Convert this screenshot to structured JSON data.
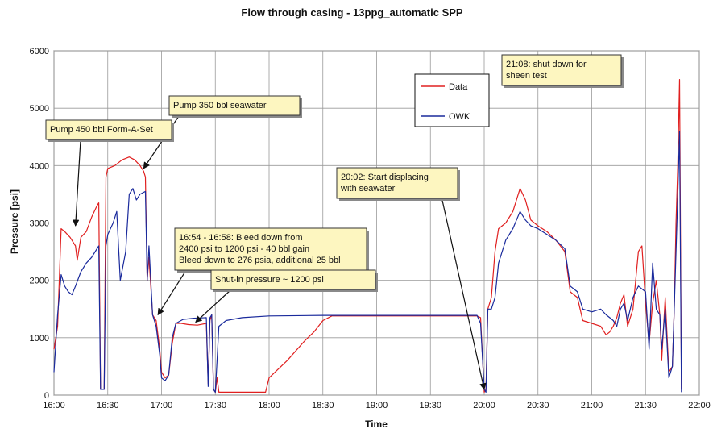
{
  "chart_data": {
    "type": "line",
    "title": "Flow through casing - 13ppg_automatic SPP",
    "xlabel": "Time",
    "ylabel": "Pressure [psi]",
    "xlim": [
      "16:00",
      "22:00"
    ],
    "ylim": [
      0,
      6000
    ],
    "grid": true,
    "legend_position": "top-middle",
    "x_ticks": [
      "16:00",
      "16:30",
      "17:00",
      "17:30",
      "18:00",
      "18:30",
      "19:00",
      "19:30",
      "20:00",
      "20:30",
      "21:00",
      "21:30",
      "22:00"
    ],
    "y_ticks": [
      0,
      1000,
      2000,
      3000,
      4000,
      5000,
      6000
    ],
    "series": [
      {
        "name": "Data",
        "color": "#e02020",
        "points": [
          [
            "16:00",
            800
          ],
          [
            "16:02",
            1200
          ],
          [
            "16:04",
            2900
          ],
          [
            "16:06",
            2850
          ],
          [
            "16:09",
            2750
          ],
          [
            "16:12",
            2600
          ],
          [
            "16:13",
            2350
          ],
          [
            "16:15",
            2750
          ],
          [
            "16:18",
            2850
          ],
          [
            "16:21",
            3100
          ],
          [
            "16:24",
            3300
          ],
          [
            "16:25",
            3350
          ],
          [
            "16:26",
            100
          ],
          [
            "16:27",
            100
          ],
          [
            "16:28",
            100
          ],
          [
            "16:29",
            3800
          ],
          [
            "16:30",
            3950
          ],
          [
            "16:34",
            4000
          ],
          [
            "16:38",
            4100
          ],
          [
            "16:42",
            4150
          ],
          [
            "16:45",
            4100
          ],
          [
            "16:48",
            4000
          ],
          [
            "16:50",
            3900
          ],
          [
            "16:51",
            3800
          ],
          [
            "16:52",
            2000
          ],
          [
            "16:53",
            2400
          ],
          [
            "16:55",
            1400
          ],
          [
            "16:57",
            1300
          ],
          [
            "16:59",
            800
          ],
          [
            "17:00",
            400
          ],
          [
            "17:02",
            300
          ],
          [
            "17:04",
            350
          ],
          [
            "17:06",
            900
          ],
          [
            "17:08",
            1250
          ],
          [
            "17:11",
            1250
          ],
          [
            "17:15",
            1230
          ],
          [
            "17:20",
            1220
          ],
          [
            "17:25",
            1250
          ],
          [
            "17:26",
            200
          ],
          [
            "17:27",
            1300
          ],
          [
            "17:28",
            1400
          ],
          [
            "17:29",
            100
          ],
          [
            "17:30",
            50
          ],
          [
            "17:31",
            300
          ],
          [
            "17:32",
            50
          ],
          [
            "17:40",
            50
          ],
          [
            "17:50",
            50
          ],
          [
            "17:55",
            50
          ],
          [
            "17:58",
            50
          ],
          [
            "18:00",
            300
          ],
          [
            "18:10",
            600
          ],
          [
            "18:20",
            950
          ],
          [
            "18:25",
            1100
          ],
          [
            "18:30",
            1300
          ],
          [
            "18:35",
            1380
          ],
          [
            "19:00",
            1380
          ],
          [
            "19:30",
            1380
          ],
          [
            "19:45",
            1380
          ],
          [
            "19:56",
            1380
          ],
          [
            "19:58",
            1350
          ],
          [
            "20:00",
            50
          ],
          [
            "20:01",
            100
          ],
          [
            "20:02",
            1500
          ],
          [
            "20:04",
            1700
          ],
          [
            "20:06",
            2500
          ],
          [
            "20:08",
            2900
          ],
          [
            "20:12",
            3000
          ],
          [
            "20:16",
            3200
          ],
          [
            "20:20",
            3600
          ],
          [
            "20:23",
            3400
          ],
          [
            "20:26",
            3050
          ],
          [
            "20:30",
            2950
          ],
          [
            "20:35",
            2850
          ],
          [
            "20:40",
            2700
          ],
          [
            "20:45",
            2500
          ],
          [
            "20:48",
            1800
          ],
          [
            "20:52",
            1700
          ],
          [
            "20:55",
            1300
          ],
          [
            "21:00",
            1250
          ],
          [
            "21:05",
            1200
          ],
          [
            "21:08",
            1050
          ],
          [
            "21:10",
            1100
          ],
          [
            "21:12",
            1200
          ],
          [
            "21:14",
            1350
          ],
          [
            "21:16",
            1600
          ],
          [
            "21:18",
            1750
          ],
          [
            "21:20",
            1200
          ],
          [
            "21:23",
            1500
          ],
          [
            "21:26",
            2500
          ],
          [
            "21:28",
            2600
          ],
          [
            "21:30",
            1600
          ],
          [
            "21:32",
            900
          ],
          [
            "21:34",
            1600
          ],
          [
            "21:36",
            2000
          ],
          [
            "21:38",
            1400
          ],
          [
            "21:39",
            600
          ],
          [
            "21:41",
            1700
          ],
          [
            "21:43",
            400
          ],
          [
            "21:45",
            500
          ],
          [
            "21:46",
            1500
          ],
          [
            "21:47",
            3000
          ],
          [
            "21:48",
            4000
          ],
          [
            "21:49",
            5500
          ],
          [
            "21:50",
            100
          ]
        ]
      },
      {
        "name": "OWK",
        "color": "#1a2a9c",
        "points": [
          [
            "16:00",
            400
          ],
          [
            "16:02",
            1400
          ],
          [
            "16:04",
            2100
          ],
          [
            "16:06",
            1900
          ],
          [
            "16:08",
            1800
          ],
          [
            "16:10",
            1750
          ],
          [
            "16:12",
            1900
          ],
          [
            "16:15",
            2150
          ],
          [
            "16:18",
            2300
          ],
          [
            "16:21",
            2400
          ],
          [
            "16:24",
            2550
          ],
          [
            "16:25",
            2600
          ],
          [
            "16:26",
            100
          ],
          [
            "16:27",
            100
          ],
          [
            "16:28",
            100
          ],
          [
            "16:29",
            2600
          ],
          [
            "16:30",
            2800
          ],
          [
            "16:33",
            3000
          ],
          [
            "16:35",
            3200
          ],
          [
            "16:37",
            2000
          ],
          [
            "16:40",
            2500
          ],
          [
            "16:42",
            3500
          ],
          [
            "16:44",
            3600
          ],
          [
            "16:46",
            3400
          ],
          [
            "16:48",
            3500
          ],
          [
            "16:51",
            3550
          ],
          [
            "16:52",
            2000
          ],
          [
            "16:53",
            2600
          ],
          [
            "16:55",
            1400
          ],
          [
            "16:57",
            1200
          ],
          [
            "16:59",
            700
          ],
          [
            "17:00",
            300
          ],
          [
            "17:02",
            250
          ],
          [
            "17:04",
            350
          ],
          [
            "17:06",
            1000
          ],
          [
            "17:08",
            1250
          ],
          [
            "17:12",
            1320
          ],
          [
            "17:18",
            1340
          ],
          [
            "17:25",
            1350
          ],
          [
            "17:26",
            150
          ],
          [
            "17:27",
            1350
          ],
          [
            "17:28",
            1400
          ],
          [
            "17:29",
            100
          ],
          [
            "17:30",
            50
          ],
          [
            "17:32",
            1200
          ],
          [
            "17:36",
            1300
          ],
          [
            "17:45",
            1350
          ],
          [
            "18:00",
            1380
          ],
          [
            "18:30",
            1390
          ],
          [
            "19:00",
            1390
          ],
          [
            "19:30",
            1390
          ],
          [
            "19:56",
            1390
          ],
          [
            "19:58",
            1250
          ],
          [
            "20:00",
            100
          ],
          [
            "20:01",
            50
          ],
          [
            "20:02",
            1500
          ],
          [
            "20:04",
            1500
          ],
          [
            "20:06",
            1700
          ],
          [
            "20:08",
            2300
          ],
          [
            "20:12",
            2700
          ],
          [
            "20:16",
            2900
          ],
          [
            "20:20",
            3200
          ],
          [
            "20:23",
            3050
          ],
          [
            "20:26",
            2950
          ],
          [
            "20:30",
            2900
          ],
          [
            "20:35",
            2800
          ],
          [
            "20:40",
            2700
          ],
          [
            "20:45",
            2550
          ],
          [
            "20:48",
            1900
          ],
          [
            "20:52",
            1800
          ],
          [
            "20:55",
            1500
          ],
          [
            "21:00",
            1450
          ],
          [
            "21:05",
            1500
          ],
          [
            "21:08",
            1400
          ],
          [
            "21:10",
            1350
          ],
          [
            "21:12",
            1300
          ],
          [
            "21:14",
            1200
          ],
          [
            "21:16",
            1500
          ],
          [
            "21:18",
            1600
          ],
          [
            "21:20",
            1300
          ],
          [
            "21:23",
            1700
          ],
          [
            "21:26",
            1900
          ],
          [
            "21:30",
            1800
          ],
          [
            "21:32",
            800
          ],
          [
            "21:34",
            2300
          ],
          [
            "21:36",
            1500
          ],
          [
            "21:38",
            1400
          ],
          [
            "21:39",
            800
          ],
          [
            "21:41",
            1500
          ],
          [
            "21:43",
            300
          ],
          [
            "21:45",
            500
          ],
          [
            "21:46",
            1500
          ],
          [
            "21:47",
            2500
          ],
          [
            "21:48",
            3500
          ],
          [
            "21:49",
            4600
          ],
          [
            "21:50",
            50
          ]
        ]
      }
    ],
    "annotations": [
      {
        "lines": [
          "Pump 450 bbl Form-A-Set"
        ],
        "arrow_to": [
          "16:12",
          2950
        ]
      },
      {
        "lines": [
          "Pump 350 bbl seawater"
        ],
        "arrow_to": [
          "16:50",
          3950
        ]
      },
      {
        "lines": [
          "16:54 - 16:58: Bleed down from",
          "2400 psi to 1200 psi - 40 bbl gain",
          "Bleed down to 276 psia, additional 25 bbl"
        ],
        "arrow_to": [
          "16:58",
          1400
        ]
      },
      {
        "lines": [
          "Shut-in pressure ~ 1200 psi"
        ],
        "arrow_to": [
          "17:19",
          1270
        ]
      },
      {
        "lines": [
          "20:02: Start displacing",
          "with seawater"
        ],
        "arrow_to": [
          "20:00",
          100
        ]
      },
      {
        "lines": [
          "21:08: shut down for",
          "sheen test"
        ],
        "arrow_to": null
      }
    ]
  }
}
